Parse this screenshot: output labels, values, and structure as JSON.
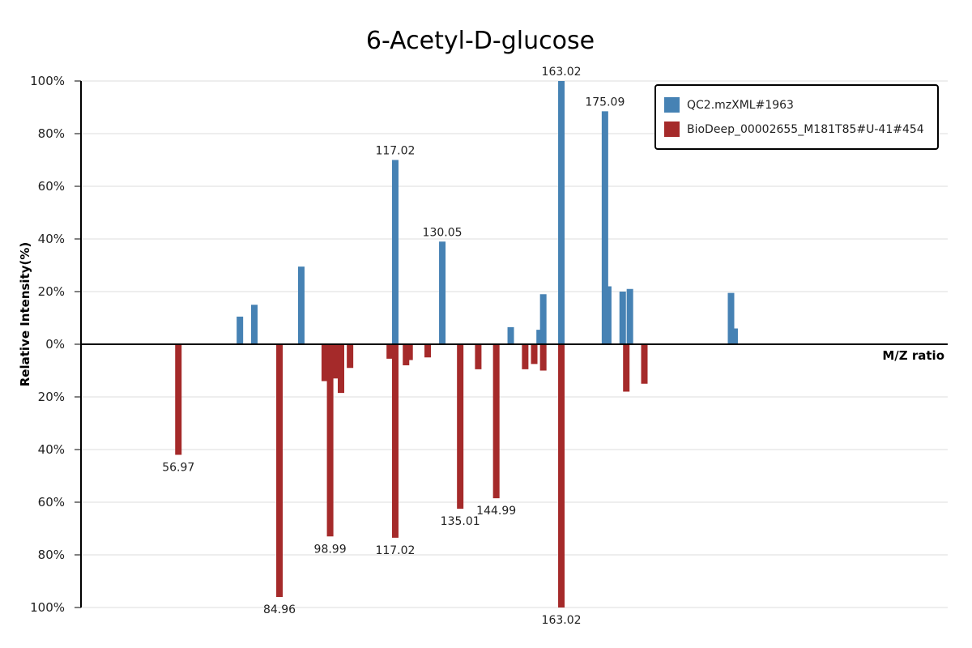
{
  "chart_data": {
    "type": "bar",
    "title": "6-Acetyl-D-glucose",
    "ylabel": "Relative Intensity(%)",
    "xlabel": "M/Z ratio",
    "xlim": [
      30,
      270
    ],
    "ylim": [
      -100,
      100
    ],
    "yticks": [
      {
        "value": 100,
        "label": "100%"
      },
      {
        "value": 80,
        "label": "80%"
      },
      {
        "value": 60,
        "label": "60%"
      },
      {
        "value": 40,
        "label": "40%"
      },
      {
        "value": 20,
        "label": "20%"
      },
      {
        "value": 0,
        "label": "0%"
      },
      {
        "value": -20,
        "label": "20%"
      },
      {
        "value": -40,
        "label": "40%"
      },
      {
        "value": -60,
        "label": "60%"
      },
      {
        "value": -80,
        "label": "80%"
      },
      {
        "value": -100,
        "label": "100%"
      }
    ],
    "grid": true,
    "legend_position": "top-right",
    "series": [
      {
        "name": "QC2.mzXML#1963",
        "color": "#4682b4",
        "direction": "up",
        "peaks": [
          {
            "mz": 57.0,
            "intensity": 0
          },
          {
            "mz": 74.0,
            "intensity": 10.5
          },
          {
            "mz": 78.0,
            "intensity": 15
          },
          {
            "mz": 91.0,
            "intensity": 29.5
          },
          {
            "mz": 117.02,
            "intensity": 70,
            "label": "117.02"
          },
          {
            "mz": 130.05,
            "intensity": 39,
            "label": "130.05"
          },
          {
            "mz": 149.0,
            "intensity": 6.5
          },
          {
            "mz": 157.0,
            "intensity": 5.5
          },
          {
            "mz": 158.0,
            "intensity": 19
          },
          {
            "mz": 163.02,
            "intensity": 100,
            "label": "163.02"
          },
          {
            "mz": 175.09,
            "intensity": 88.5,
            "label": "175.09"
          },
          {
            "mz": 176.0,
            "intensity": 22
          },
          {
            "mz": 180.0,
            "intensity": 20
          },
          {
            "mz": 182.0,
            "intensity": 21
          },
          {
            "mz": 210.0,
            "intensity": 19.5
          },
          {
            "mz": 211.0,
            "intensity": 6
          }
        ]
      },
      {
        "name": "BioDeep_00002655_M181T85#U-41#454",
        "color": "#a52a2a",
        "direction": "down",
        "peaks": [
          {
            "mz": 56.97,
            "intensity": 42,
            "label": "56.97"
          },
          {
            "mz": 84.96,
            "intensity": 96,
            "label": "84.96"
          },
          {
            "mz": 97.5,
            "intensity": 14
          },
          {
            "mz": 98.99,
            "intensity": 73,
            "label": "98.99"
          },
          {
            "mz": 100.5,
            "intensity": 13
          },
          {
            "mz": 102.0,
            "intensity": 18.5
          },
          {
            "mz": 104.5,
            "intensity": 9
          },
          {
            "mz": 115.5,
            "intensity": 5.5
          },
          {
            "mz": 117.02,
            "intensity": 73.5,
            "label": "117.02"
          },
          {
            "mz": 120.0,
            "intensity": 8
          },
          {
            "mz": 121.0,
            "intensity": 6
          },
          {
            "mz": 126.0,
            "intensity": 5
          },
          {
            "mz": 135.01,
            "intensity": 62.5,
            "label": "135.01"
          },
          {
            "mz": 140.0,
            "intensity": 9.5
          },
          {
            "mz": 144.99,
            "intensity": 58.5,
            "label": "144.99"
          },
          {
            "mz": 153.0,
            "intensity": 9.5
          },
          {
            "mz": 155.5,
            "intensity": 7.5
          },
          {
            "mz": 158.0,
            "intensity": 10
          },
          {
            "mz": 163.02,
            "intensity": 100,
            "label": "163.02"
          },
          {
            "mz": 181.0,
            "intensity": 18
          },
          {
            "mz": 186.0,
            "intensity": 15
          }
        ]
      }
    ]
  }
}
